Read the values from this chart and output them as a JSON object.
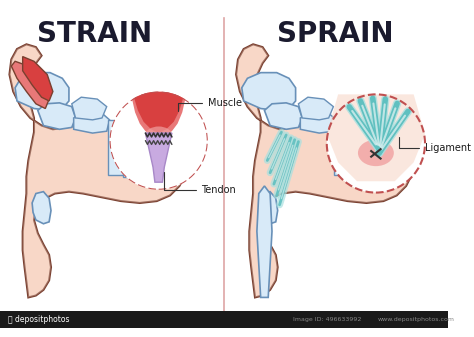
{
  "title_left": "STRAIN",
  "title_right": "SPRAIN",
  "label_muscle": "Muscle",
  "label_tendon": "Tendon",
  "label_ligament": "Ligament",
  "bg_color": "#ffffff",
  "foot_skin_color": "#f7d0be",
  "foot_skin_inner": "#fce8dc",
  "foot_outline_color": "#7a4030",
  "bone_color": "#d8eaf8",
  "bone_outline_color": "#6890b8",
  "muscle_red": "#d84040",
  "muscle_salmon": "#e87878",
  "tendon_purple": "#a888c8",
  "tendon_light": "#c8aae0",
  "ligament_teal": "#60c0c0",
  "ligament_light": "#a8e0e0",
  "circle_outline": "#c05050",
  "circle_fill": "#ffffff",
  "divider_color": "#d08080",
  "title_color": "#1a1a2e",
  "label_color": "#1a1a1a",
  "watermark_color": "#888888",
  "injury_pink": "#f0a0a0",
  "ankle_skin": "#f0c0a8",
  "fig_width": 4.74,
  "fig_height": 3.37,
  "dpi": 100
}
